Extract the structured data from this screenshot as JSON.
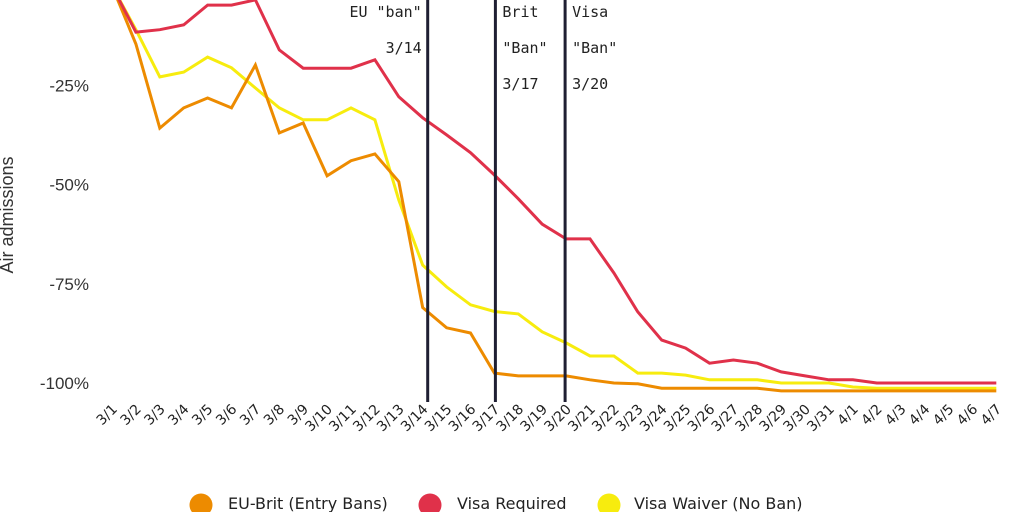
{
  "chart_data": {
    "type": "line",
    "title": "",
    "xlabel": "",
    "ylabel": "Air admissions",
    "ylim": [
      -103,
      -3.5
    ],
    "grid": false,
    "legend_position": "bottom",
    "yticks": [
      {
        "value": -25,
        "label": "-25%"
      },
      {
        "value": -50,
        "label": "-50%"
      },
      {
        "value": -75,
        "label": "-75%"
      },
      {
        "value": -100,
        "label": "-100%"
      }
    ],
    "categories": [
      "3/1",
      "3/2",
      "3/3",
      "3/4",
      "3/5",
      "3/6",
      "3/7",
      "3/8",
      "3/9",
      "3/10",
      "3/11",
      "3/12",
      "3/13",
      "3/14",
      "3/15",
      "3/16",
      "3/17",
      "3/18",
      "3/19",
      "3/20",
      "3/21",
      "3/22",
      "3/23",
      "3/24",
      "3/25",
      "3/26",
      "3/27",
      "3/28",
      "3/29",
      "3/30",
      "3/31",
      "4/1",
      "4/2",
      "4/3",
      "4/4",
      "4/5",
      "4/6",
      "4/7"
    ],
    "series": [
      {
        "name": "EU-Brit (Entry Bans)",
        "color": "#ED8B00",
        "values": [
          0,
          -14.6,
          -35.8,
          -30.7,
          -28.2,
          -30.7,
          -19.9,
          -37.0,
          -34.5,
          -47.8,
          -44.0,
          -42.3,
          -49.3,
          -81.0,
          -86.1,
          -87.4,
          -97.5,
          -98.2,
          -98.2,
          -98.2,
          -99.2,
          -100.0,
          -100.2,
          -101.3,
          -101.3,
          -101.3,
          -101.3,
          -101.3,
          -102.0,
          -102.0,
          -102.0,
          -102.0,
          -102.0,
          -102.0,
          -102.0,
          -102.0,
          -102.0,
          -102.0
        ]
      },
      {
        "name": "Visa Required",
        "color": "#E0314A",
        "values": [
          0,
          -11.6,
          -11.0,
          -9.8,
          -4.8,
          -4.8,
          -3.5,
          -16.1,
          -20.7,
          -20.7,
          -20.7,
          -18.6,
          -27.9,
          -33.2,
          -37.5,
          -42.0,
          -47.6,
          -53.6,
          -60.0,
          -63.7,
          -63.7,
          -72.3,
          -82.1,
          -89.2,
          -91.2,
          -95.0,
          -94.2,
          -95.0,
          -97.2,
          -98.2,
          -99.2,
          -99.2,
          -100.0,
          -100.0,
          -100.0,
          -100.0,
          -100.0,
          -100.0
        ]
      },
      {
        "name": "Visa Waiver (No Ban)",
        "color": "#F7EC0E",
        "values": [
          0,
          -11.0,
          -22.9,
          -21.7,
          -17.9,
          -20.6,
          -25.7,
          -30.7,
          -33.7,
          -33.7,
          -30.7,
          -33.7,
          -53.9,
          -70.3,
          -75.8,
          -80.3,
          -82.0,
          -82.6,
          -87.1,
          -89.9,
          -93.2,
          -93.2,
          -97.5,
          -97.5,
          -98.0,
          -99.2,
          -99.2,
          -99.2,
          -100.0,
          -100.0,
          -100.0,
          -101.0,
          -101.3,
          -101.3,
          -101.3,
          -101.3,
          -101.3,
          -101.3
        ]
      }
    ],
    "annotations": [
      {
        "category": "3/14",
        "lines": [
          "EU \"ban\"",
          "3/14"
        ],
        "color": "#1F1F33"
      },
      {
        "category": "3/17",
        "lines": [
          "Brit",
          "\"Ban\"",
          "3/17"
        ],
        "color": "#1F1F33"
      },
      {
        "category": "3/20",
        "lines": [
          "Visa",
          "\"Ban\"",
          "3/20"
        ],
        "color": "#1F1F33"
      }
    ]
  },
  "legend": {
    "items": [
      {
        "label": "EU-Brit (Entry Bans)",
        "color": "#ED8B00"
      },
      {
        "label": "Visa Required",
        "color": "#E0314A"
      },
      {
        "label": "Visa Waiver (No Ban)",
        "color": "#F7EC0E"
      }
    ]
  }
}
